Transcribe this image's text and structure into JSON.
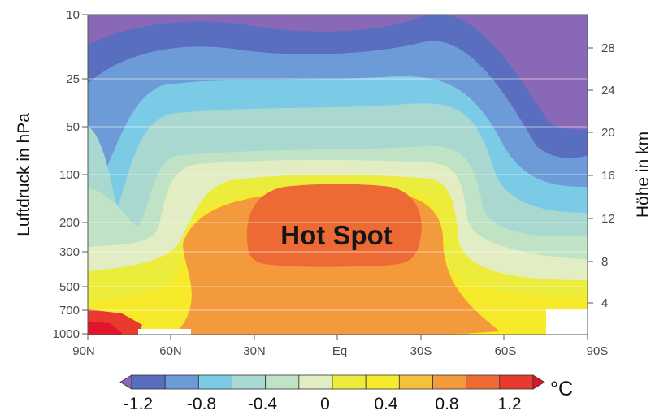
{
  "chart_data": {
    "type": "heatmap",
    "title": "",
    "ylabel_left": "Luftdruck in hPa",
    "ylabel_right": "Höhe in km",
    "x_ticks": [
      "90N",
      "60N",
      "30N",
      "Eq",
      "30S",
      "60S",
      "90S"
    ],
    "y_left_ticks": [
      "10",
      "25",
      "50",
      "100",
      "200",
      "300",
      "500",
      "700",
      "1000"
    ],
    "y_right_ticks": [
      "28",
      "24",
      "20",
      "16",
      "12",
      "8",
      "4"
    ],
    "pressure_range_hpa": [
      10,
      1000
    ],
    "height_range_km": [
      0,
      31
    ],
    "annotation": "Hot Spot",
    "colorbar": {
      "unit": "°C",
      "labels": [
        "-1.2",
        "-0.8",
        "-0.4",
        "0",
        "0.4",
        "0.8",
        "1.2"
      ],
      "boundaries": [
        -1.4,
        -1.2,
        -1.0,
        -0.8,
        -0.6,
        -0.4,
        -0.2,
        0.0,
        0.2,
        0.4,
        0.6,
        0.8,
        1.0,
        1.2,
        1.4
      ],
      "colors": [
        "#8a68b8",
        "#5a6ec0",
        "#6d9bd8",
        "#7ccbe6",
        "#a8d8d0",
        "#bfe3c4",
        "#e3edc4",
        "#ecec3c",
        "#f6ea2a",
        "#f3c23a",
        "#f29a3c",
        "#ee6a35",
        "#e83a2f",
        "#e0142a"
      ]
    },
    "contour_levels_shown": [
      -1.3,
      -1.1,
      -0.9,
      -0.7,
      -0.5,
      -0.3,
      -0.1,
      0.1,
      0.3,
      0.5,
      0.7,
      0.9
    ],
    "grid": false
  }
}
